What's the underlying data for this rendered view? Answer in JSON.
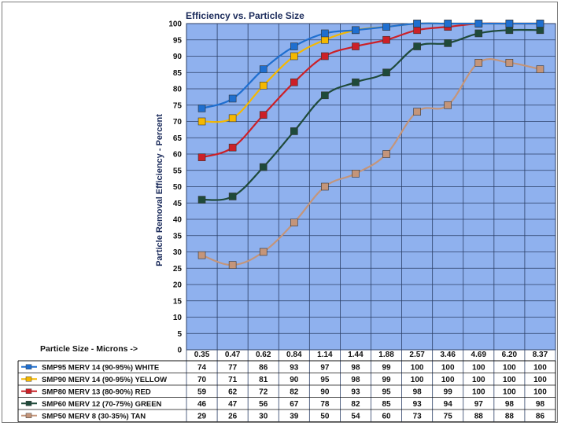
{
  "chart_data": {
    "type": "line",
    "title": "Efficiency vs. Particle Size",
    "xlabel": "Particle Size - Microns ->",
    "ylabel": "Particle Removal Efficiency - Percent",
    "ylim": [
      0,
      100
    ],
    "yticks": [
      "0",
      "5",
      "10",
      "15",
      "20",
      "25",
      "30",
      "35",
      "40",
      "45",
      "50",
      "55",
      "60",
      "65",
      "70",
      "75",
      "80",
      "85",
      "90",
      "95",
      "100"
    ],
    "categories": [
      "0.35",
      "0.47",
      "0.62",
      "0.84",
      "1.14",
      "1.44",
      "1.88",
      "2.57",
      "3.46",
      "4.69",
      "6.20",
      "8.37"
    ],
    "grid": true,
    "legend_placement": "bottom-table",
    "series": [
      {
        "name": "SMP95 MERV 14 (90-95%) WHITE",
        "color": "#1f6fd0",
        "values": [
          74,
          77,
          86,
          93,
          97,
          98,
          99,
          100,
          100,
          100,
          100,
          100
        ]
      },
      {
        "name": "SMP90 MERV 14 (90-95%) YELLOW",
        "color": "#f5b800",
        "values": [
          70,
          71,
          81,
          90,
          95,
          98,
          99,
          100,
          100,
          100,
          100,
          100
        ]
      },
      {
        "name": "SMP80 MERV 13 (80-90%)   RED",
        "color": "#cc2027",
        "values": [
          59,
          62,
          72,
          82,
          90,
          93,
          95,
          98,
          99,
          100,
          100,
          100
        ]
      },
      {
        "name": "SMP60 MERV 12 (70-75%)  GREEN",
        "color": "#1f4a3a",
        "values": [
          46,
          47,
          56,
          67,
          78,
          82,
          85,
          93,
          94,
          97,
          98,
          98
        ]
      },
      {
        "name": "SMP50 MERV 8   (30-35%)  TAN",
        "color": "#c4957a",
        "values": [
          29,
          26,
          30,
          39,
          50,
          54,
          60,
          73,
          75,
          88,
          88,
          86
        ]
      }
    ]
  }
}
